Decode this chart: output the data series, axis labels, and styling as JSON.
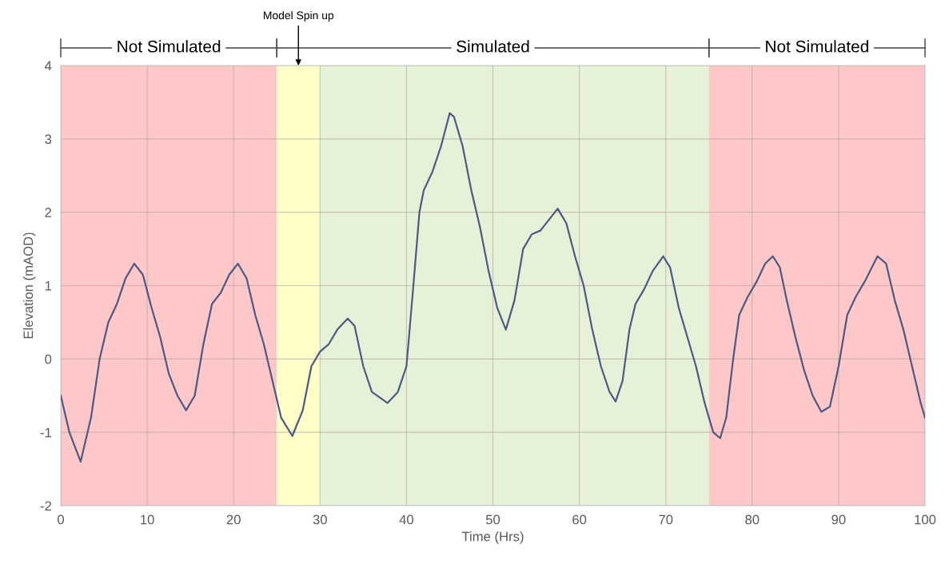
{
  "chart_data": {
    "type": "line",
    "xlabel": "Time (Hrs)",
    "ylabel": "Elevation (mAOD)",
    "xlim": [
      0,
      100
    ],
    "xticks": [
      0,
      10,
      20,
      30,
      40,
      50,
      60,
      70,
      80,
      90,
      100
    ],
    "ylim": [
      -2,
      4
    ],
    "yticks": [
      -2,
      -1,
      0,
      1,
      2,
      3,
      4
    ],
    "grid": true,
    "bands": [
      {
        "axis": "x",
        "from": 0,
        "to": 25,
        "label": "Not Simulated",
        "color": "#fec8c8"
      },
      {
        "axis": "x",
        "from": 25,
        "to": 30,
        "color": "#ffffc8"
      },
      {
        "axis": "x",
        "from": 30,
        "to": 75,
        "label": "Simulated",
        "color": "#e6f2d8"
      },
      {
        "axis": "x",
        "from": 75,
        "to": 100,
        "label": "Not Simulated",
        "color": "#fec8c8"
      }
    ],
    "annotations": [
      {
        "text": "Model Spin up",
        "x": 27.5,
        "y": 4
      }
    ],
    "series": [
      {
        "color": "#4f5a84",
        "x": [
          0,
          1,
          2.3,
          3.5,
          4.5,
          5.5,
          6.5,
          7.5,
          8.5,
          9.5,
          10.5,
          11.5,
          12.5,
          13.5,
          14.5,
          15.5,
          16.5,
          17.5,
          18.5,
          19.5,
          20.5,
          21.5,
          22.5,
          23.5,
          24.5,
          25.5,
          26.8,
          28,
          29,
          30,
          31,
          32,
          33.2,
          34,
          35,
          36,
          37.8,
          39,
          40,
          40.8,
          41.5,
          42,
          43,
          44,
          45,
          45.5,
          46.5,
          47.5,
          48.5,
          49.5,
          50.5,
          51.5,
          52.5,
          53.5,
          54.5,
          55.5,
          56.5,
          57.5,
          58.5,
          59.5,
          60.5,
          61.5,
          62.5,
          63.5,
          64.2,
          65,
          65.8,
          66.5,
          67.5,
          68.5,
          69.7,
          70.5,
          71.5,
          72.5,
          73.5,
          74.5,
          75.5,
          76.3,
          77,
          77.8,
          78.5,
          79.5,
          80.5,
          81.5,
          82.4,
          83.2,
          84,
          85,
          86,
          87,
          88,
          89,
          90,
          91,
          92,
          93,
          94.5,
          95.5,
          96.5,
          97.5,
          98.5,
          99.5,
          100
        ],
        "values": [
          -0.5,
          -1.0,
          -1.4,
          -0.8,
          0.0,
          0.5,
          0.75,
          1.1,
          1.3,
          1.15,
          0.7,
          0.3,
          -0.2,
          -0.5,
          -0.7,
          -0.5,
          0.2,
          0.75,
          0.9,
          1.15,
          1.3,
          1.1,
          0.6,
          0.2,
          -0.3,
          -0.8,
          -1.05,
          -0.7,
          -0.1,
          0.1,
          0.2,
          0.4,
          0.55,
          0.45,
          -0.1,
          -0.45,
          -0.6,
          -0.45,
          -0.1,
          1.0,
          2.0,
          2.3,
          2.55,
          2.9,
          3.35,
          3.3,
          2.9,
          2.3,
          1.8,
          1.2,
          0.7,
          0.4,
          0.8,
          1.5,
          1.7,
          1.75,
          1.9,
          2.05,
          1.85,
          1.4,
          1.0,
          0.4,
          -0.1,
          -0.45,
          -0.58,
          -0.3,
          0.4,
          0.75,
          0.95,
          1.2,
          1.4,
          1.25,
          0.7,
          0.3,
          -0.1,
          -0.6,
          -1.0,
          -1.08,
          -0.8,
          0.0,
          0.6,
          0.85,
          1.05,
          1.3,
          1.4,
          1.25,
          0.8,
          0.3,
          -0.15,
          -0.5,
          -0.72,
          -0.65,
          -0.1,
          0.6,
          0.85,
          1.05,
          1.4,
          1.3,
          0.8,
          0.4,
          -0.1,
          -0.6,
          -0.8
        ]
      }
    ]
  }
}
